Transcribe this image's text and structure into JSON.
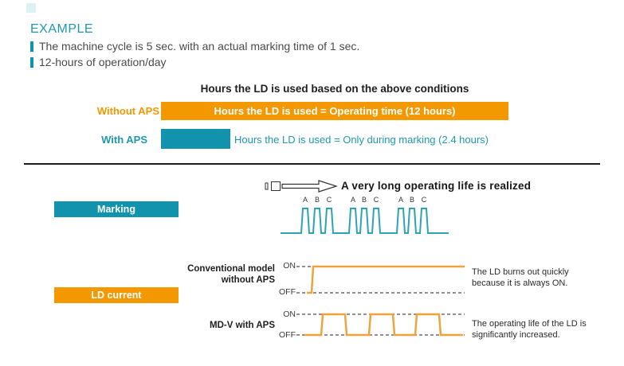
{
  "colors": {
    "teal": "#1193AE",
    "teal_text": "#1E98AE",
    "teal_wave": "#2EA3B7",
    "orange": "#F39800",
    "orange_wave": "#F0A33C"
  },
  "example": {
    "heading": "EXAMPLE",
    "bullets": [
      "The machine cycle is 5 sec. with an actual marking time of 1 sec.",
      "12-hours of operation/day"
    ]
  },
  "hours_chart": {
    "title": "Hours the LD is used based on the above conditions",
    "max_hours": 12,
    "rows": [
      {
        "label": "Without APS",
        "bar_text": "Hours the LD is used = Operating time (12 hours)",
        "hours": 12
      },
      {
        "label": "With APS",
        "bar_text": "Hours the LD is used = Only during marking (2.4 hours)",
        "hours": 2.4
      }
    ]
  },
  "chart_data": {
    "type": "bar",
    "categories": [
      "Without APS",
      "With APS"
    ],
    "values": [
      12,
      2.4
    ],
    "title": "Hours the LD is used based on the above conditions",
    "xlabel": "Hours the LD is used",
    "ylabel": "",
    "xlim": [
      0,
      12
    ],
    "orientation": "horizontal"
  },
  "flow": {
    "caption": "A very long operating life is realized"
  },
  "timing": {
    "marking_label": "Marking",
    "ld_current_label": "LD current",
    "pulse_labels": [
      "A",
      "B",
      "C"
    ],
    "conventional": {
      "label_line1": "Conventional model",
      "label_line2": "without APS",
      "on": "ON",
      "off": "OFF",
      "note_line1": "The LD burns out quickly",
      "note_line2": "because it is always ON."
    },
    "mdv": {
      "label": "MD-V with APS",
      "on": "ON",
      "off": "OFF",
      "note_line1": "The operating life of the LD is",
      "note_line2": "significantly increased."
    }
  }
}
